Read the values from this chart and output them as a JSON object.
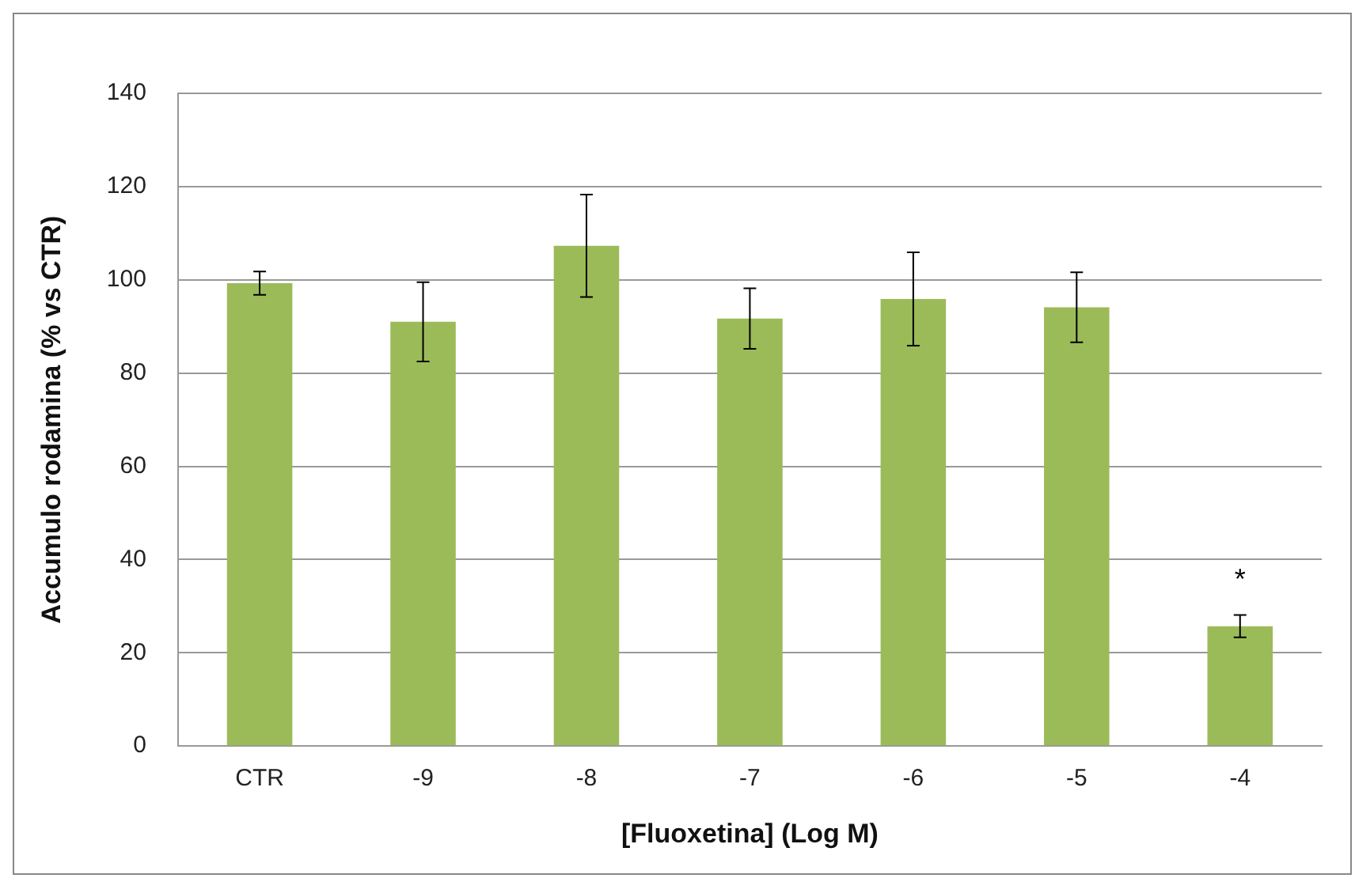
{
  "chart_data": {
    "type": "bar",
    "xlabel": "[Fluoxetina] (Log M)",
    "ylabel": "Accumulo rodamina (% vs CTR)",
    "categories": [
      "CTR",
      "-9",
      "-8",
      "-7",
      "-6",
      "-5",
      "-4"
    ],
    "values": [
      99.3,
      91,
      107.3,
      91.7,
      95.9,
      94.1,
      25.7
    ],
    "errors": [
      2.5,
      8.5,
      11,
      6.5,
      10,
      7.5,
      2.4
    ],
    "color": "#9bbb59",
    "ylim": [
      0,
      140
    ],
    "yticks": [
      0,
      20,
      40,
      60,
      80,
      100,
      120,
      140
    ],
    "grid": "y",
    "annotations": [
      "*"
    ]
  }
}
